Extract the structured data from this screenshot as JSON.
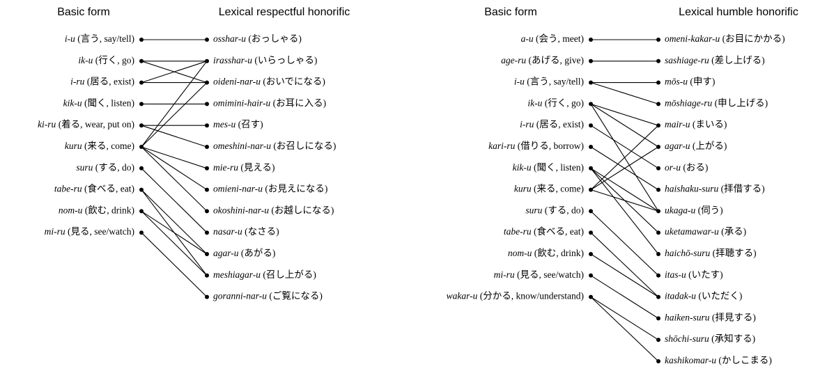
{
  "panels": [
    {
      "left_header": "Basic form",
      "right_header": "Lexical respectful honorific",
      "left": [
        {
          "romaji": "i-u",
          "gloss": "(言う, say/tell)"
        },
        {
          "romaji": "ik-u",
          "gloss": "(行く, go)"
        },
        {
          "romaji": "i-ru",
          "gloss": "(居る, exist)"
        },
        {
          "romaji": "kik-u",
          "gloss": "(聞く, listen)"
        },
        {
          "romaji": "ki-ru",
          "gloss": "(着る, wear, put on)"
        },
        {
          "romaji": "kuru",
          "gloss": "(来る, come)"
        },
        {
          "romaji": "suru",
          "gloss": "(する, do)"
        },
        {
          "romaji": "tabe-ru",
          "gloss": "(食べる, eat)"
        },
        {
          "romaji": "nom-u",
          "gloss": "(飲む, drink)"
        },
        {
          "romaji": "mi-ru",
          "gloss": "(見る, see/watch)"
        }
      ],
      "right": [
        {
          "romaji": "osshar-u",
          "gloss": "(おっしゃる)"
        },
        {
          "romaji": "irasshar-u",
          "gloss": "(いらっしゃる)"
        },
        {
          "romaji": "oideni-nar-u",
          "gloss": "(おいでになる)"
        },
        {
          "romaji": "omimini-hair-u",
          "gloss": "(お耳に入る)"
        },
        {
          "romaji": "mes-u",
          "gloss": "(召す)"
        },
        {
          "romaji": "omeshini-nar-u",
          "gloss": "(お召しになる)"
        },
        {
          "romaji": "mie-ru",
          "gloss": "(見える)"
        },
        {
          "romaji": "omieni-nar-u",
          "gloss": "(お見えになる)"
        },
        {
          "romaji": "okoshini-nar-u",
          "gloss": "(お越しになる)"
        },
        {
          "romaji": "nasar-u",
          "gloss": "(なさる)"
        },
        {
          "romaji": "agar-u",
          "gloss": "(あがる)"
        },
        {
          "romaji": "meshiagar-u",
          "gloss": "(召し上がる)"
        },
        {
          "romaji": "goranni-nar-u",
          "gloss": "(ご覧になる)"
        }
      ]
    },
    {
      "left_header": "Basic form",
      "right_header": "Lexical humble honorific",
      "left": [
        {
          "romaji": "a-u",
          "gloss": "(会う, meet)"
        },
        {
          "romaji": "age-ru",
          "gloss": "(あげる, give)"
        },
        {
          "romaji": "i-u",
          "gloss": "(言う, say/tell)"
        },
        {
          "romaji": "ik-u",
          "gloss": "(行く, go)"
        },
        {
          "romaji": "i-ru",
          "gloss": "(居る, exist)"
        },
        {
          "romaji": "kari-ru",
          "gloss": "(借りる, borrow)"
        },
        {
          "romaji": "kik-u",
          "gloss": "(聞く, listen)"
        },
        {
          "romaji": "kuru",
          "gloss": "(来る, come)"
        },
        {
          "romaji": "suru",
          "gloss": "(する, do)"
        },
        {
          "romaji": "tabe-ru",
          "gloss": "(食べる, eat)"
        },
        {
          "romaji": "nom-u",
          "gloss": "(飲む, drink)"
        },
        {
          "romaji": "mi-ru",
          "gloss": "(見る, see/watch)"
        },
        {
          "romaji": "wakar-u",
          "gloss": "(分かる, know/understand)"
        }
      ],
      "right": [
        {
          "romaji": "omeni-kakar-u",
          "gloss": "(お目にかかる)"
        },
        {
          "romaji": "sashiage-ru",
          "gloss": "(差し上げる)"
        },
        {
          "romaji": "mōs-u",
          "gloss": "(申す)"
        },
        {
          "romaji": "mōshiage-ru",
          "gloss": "(申し上げる)"
        },
        {
          "romaji": "mair-u",
          "gloss": "(まいる)"
        },
        {
          "romaji": "agar-u",
          "gloss": "(上がる)"
        },
        {
          "romaji": "or-u",
          "gloss": "(おる)"
        },
        {
          "romaji": "haishaku-suru",
          "gloss": "(拝借する)"
        },
        {
          "romaji": "ukaga-u",
          "gloss": "(伺う)"
        },
        {
          "romaji": "uketamawar-u",
          "gloss": "(承る)"
        },
        {
          "romaji": "haichō-suru",
          "gloss": "(拝聴する)"
        },
        {
          "romaji": "itas-u",
          "gloss": "(いたす)"
        },
        {
          "romaji": "itadak-u",
          "gloss": "(いただく)"
        },
        {
          "romaji": "haiken-suru",
          "gloss": "(拝見する)"
        },
        {
          "romaji": "shōchi-suru",
          "gloss": "(承知する)"
        },
        {
          "romaji": "kashikomar-u",
          "gloss": "(かしこまる)"
        }
      ]
    }
  ]
}
